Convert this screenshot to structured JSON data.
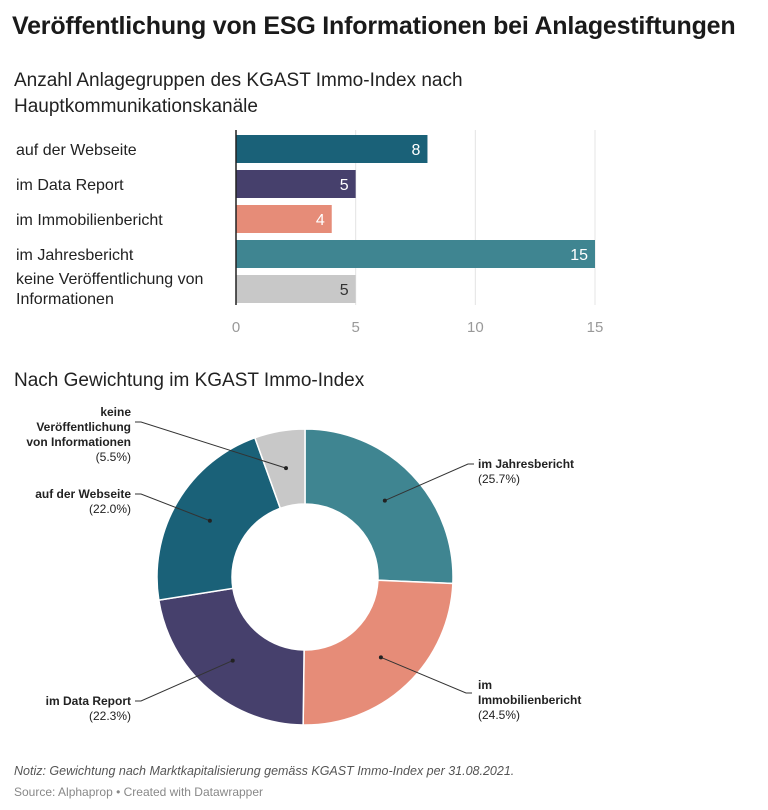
{
  "title": "Veröffentlichung von ESG Informationen bei Anlagestiftungen",
  "bar_subtitle": "Anzahl Anlagegruppen des KGAST Immo-Index nach Hauptkommunikationskanäle",
  "pie_subtitle": "Nach Gewichtung im KGAST Immo-Index",
  "note": "Notiz: Gewichtung nach Marktkapitalisierung gemäss KGAST Immo-Index per 31.08.2021.",
  "source": "Source: Alphaprop • Created with Datawrapper",
  "chart_data": [
    {
      "type": "bar",
      "orientation": "horizontal",
      "categories": [
        "auf der Webseite",
        "im Data Report",
        "im Immobilienbericht",
        "im Jahresbericht",
        "keine Veröffentlichung von Informationen"
      ],
      "values": [
        8,
        5,
        4,
        15,
        5
      ],
      "value_labels": [
        "8",
        "5",
        "4",
        "15",
        "5"
      ],
      "colors": [
        "#1a6178",
        "#46406c",
        "#e68c78",
        "#3f8591",
        "#c8c8c8"
      ],
      "label_colors": [
        "#ffffff",
        "#ffffff",
        "#ffffff",
        "#ffffff",
        "#333333"
      ],
      "xlim": [
        0,
        15
      ],
      "xticks": [
        "0",
        "5",
        "10",
        "15"
      ],
      "grid": true
    },
    {
      "type": "pie",
      "donut": true,
      "labels": [
        "im Jahresbericht",
        "im Immobilienbericht",
        "im Data Report",
        "auf der Webseite",
        "keine Veröffentlichung von Informationen"
      ],
      "values": [
        25.7,
        24.5,
        22.3,
        22.0,
        5.5
      ],
      "value_labels": [
        "(25.7%)",
        "(24.5%)",
        "(22.3%)",
        "(22.0%)",
        "(5.5%)"
      ],
      "colors": [
        "#3f8591",
        "#e68c78",
        "#46406c",
        "#1a6178",
        "#c8c8c8"
      ]
    }
  ]
}
